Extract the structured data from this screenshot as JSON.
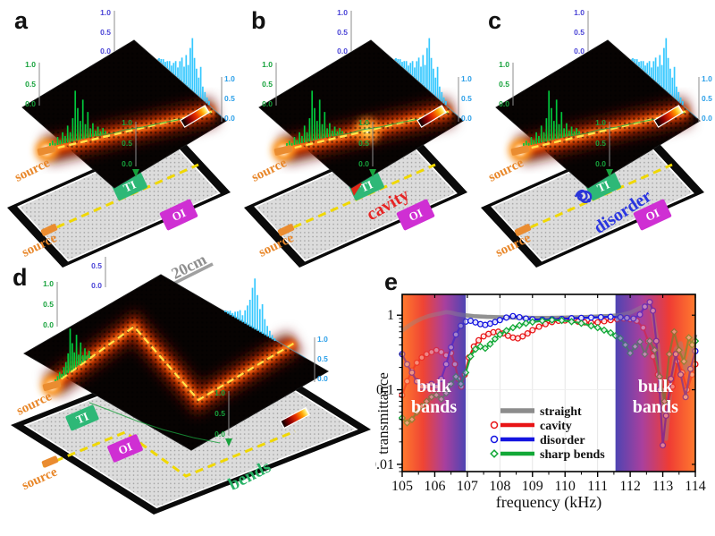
{
  "shared": {
    "axis_ticks": [
      "1.0",
      "0.5",
      "0.0"
    ],
    "d_top_ticks": [
      "0.5",
      "0.0"
    ],
    "spectrum_in": [
      4,
      6,
      3,
      9,
      5,
      13,
      8,
      19,
      11,
      26,
      56,
      36,
      21,
      44,
      16,
      29,
      10,
      15,
      6,
      10,
      4,
      7,
      3
    ],
    "spectrum_out": [
      3,
      4,
      6,
      5,
      8,
      10,
      7,
      12,
      16,
      11,
      20,
      26,
      18,
      33,
      24,
      45,
      58,
      38,
      28,
      20,
      34,
      14,
      10,
      6,
      4
    ],
    "spectrum_in_d": [
      3,
      5,
      8,
      4,
      10,
      14,
      22,
      48,
      30,
      18,
      36,
      12,
      24,
      8,
      14,
      5,
      8
    ],
    "spectrum_out_d": [
      2,
      3,
      5,
      4,
      7,
      9,
      12,
      8,
      15,
      22,
      30,
      45,
      57,
      40,
      26,
      33,
      18,
      12,
      8,
      5,
      3
    ],
    "colors": {
      "ti_box": "#2eb877",
      "oi_box": "#cf2fd3",
      "source": "#e8872a",
      "cavity": "#e62424",
      "disorder": "#2a35e0",
      "bends": "#28b266",
      "waveguide_dash": "#ffe34a"
    }
  },
  "panels": {
    "a": {
      "letter": "a",
      "ti": "TI",
      "oi": "OI",
      "source": "source"
    },
    "b": {
      "letter": "b",
      "ti": "TI",
      "oi": "OI",
      "source": "source",
      "feature": "cavity"
    },
    "c": {
      "letter": "c",
      "ti": "TI",
      "oi": "OI",
      "source": "source",
      "feature": "disorder"
    },
    "d": {
      "letter": "d",
      "ti": "TI",
      "oi": "OI",
      "source": "source",
      "feature": "bends",
      "scalebar": "20cm"
    },
    "e": {
      "letter": "e"
    }
  },
  "chart_data": {
    "type": "line",
    "title": "",
    "xlabel": "frequency (kHz)",
    "ylabel": "transmittance",
    "xlim": [
      105,
      114
    ],
    "ylim": [
      0.008,
      1.9
    ],
    "yscale": "log",
    "grid": true,
    "legend_position": "lower center",
    "xticks": [
      105,
      106,
      107,
      108,
      109,
      110,
      111,
      112,
      113,
      114
    ],
    "yticks": [
      {
        "v": 1,
        "t": "1"
      },
      {
        "v": 0.1,
        "t": "0.1"
      },
      {
        "v": 0.01,
        "t": "0.01"
      }
    ],
    "regions": [
      {
        "label": "bulk bands",
        "x_start": 105,
        "x_end": 106.95,
        "gradient": [
          "#ff7a2e",
          "#ef4434",
          "#a8409e",
          "#4e44b2"
        ]
      },
      {
        "label": "bulk bands",
        "x_start": 111.55,
        "x_end": 114,
        "gradient": [
          "#4e44b2",
          "#a8409e",
          "#ef3c34",
          "#ff7a2e"
        ]
      }
    ],
    "legend": [
      {
        "name": "straight",
        "color": "#8c8c8c",
        "marker": "none"
      },
      {
        "name": "cavity",
        "color": "#e81416",
        "marker": "circle"
      },
      {
        "name": "disorder",
        "color": "#1414e0",
        "marker": "circle"
      },
      {
        "name": "sharp bends",
        "color": "#12a837",
        "marker": "diamond"
      }
    ],
    "series": [
      {
        "name": "straight",
        "color": "#8c8c8c",
        "marker": "none",
        "width": 4.6,
        "points": [
          [
            105,
            0.62
          ],
          [
            105.2,
            0.72
          ],
          [
            105.4,
            0.82
          ],
          [
            105.6,
            0.9
          ],
          [
            105.8,
            0.97
          ],
          [
            106,
            1.02
          ],
          [
            106.2,
            1.06
          ],
          [
            106.35,
            1.1
          ],
          [
            106.5,
            1.08
          ],
          [
            106.7,
            1.03
          ],
          [
            106.9,
            1.0
          ],
          [
            107.2,
            0.97
          ],
          [
            107.6,
            0.95
          ],
          [
            108,
            0.94
          ],
          [
            108.5,
            0.93
          ],
          [
            109,
            0.92
          ],
          [
            109.5,
            0.92
          ],
          [
            110,
            0.93
          ],
          [
            110.5,
            0.94
          ],
          [
            111,
            0.96
          ],
          [
            111.4,
            0.98
          ],
          [
            111.7,
            1.0
          ],
          [
            112,
            1.08
          ],
          [
            112.3,
            1.25
          ],
          [
            112.55,
            1.42
          ],
          [
            112.7,
            1.05
          ],
          [
            112.85,
            0.4
          ],
          [
            113,
            0.05
          ],
          [
            113.1,
            0.022
          ],
          [
            113.25,
            0.12
          ],
          [
            113.4,
            0.35
          ],
          [
            113.55,
            0.42
          ],
          [
            113.7,
            0.18
          ],
          [
            113.85,
            0.3
          ],
          [
            114,
            0.55
          ]
        ]
      },
      {
        "name": "cavity",
        "color": "#e81416",
        "marker": "circle",
        "width": 2.2,
        "points": [
          [
            105,
            0.085
          ],
          [
            105.15,
            0.13
          ],
          [
            105.3,
            0.18
          ],
          [
            105.45,
            0.23
          ],
          [
            105.6,
            0.27
          ],
          [
            105.75,
            0.3
          ],
          [
            105.9,
            0.32
          ],
          [
            106.05,
            0.34
          ],
          [
            106.2,
            0.32
          ],
          [
            106.35,
            0.29
          ],
          [
            106.5,
            0.31
          ],
          [
            106.62,
            0.22
          ],
          [
            106.72,
            0.14
          ],
          [
            106.82,
            0.11
          ],
          [
            106.92,
            0.16
          ],
          [
            107.05,
            0.27
          ],
          [
            107.2,
            0.38
          ],
          [
            107.35,
            0.46
          ],
          [
            107.5,
            0.52
          ],
          [
            107.65,
            0.56
          ],
          [
            107.8,
            0.59
          ],
          [
            107.95,
            0.6
          ],
          [
            108.1,
            0.57
          ],
          [
            108.25,
            0.53
          ],
          [
            108.4,
            0.5
          ],
          [
            108.55,
            0.49
          ],
          [
            108.7,
            0.52
          ],
          [
            108.85,
            0.57
          ],
          [
            109,
            0.63
          ],
          [
            109.2,
            0.7
          ],
          [
            109.4,
            0.76
          ],
          [
            109.6,
            0.81
          ],
          [
            109.8,
            0.84
          ],
          [
            110,
            0.85
          ],
          [
            110.2,
            0.84
          ],
          [
            110.4,
            0.82
          ],
          [
            110.6,
            0.8
          ],
          [
            110.8,
            0.79
          ],
          [
            111,
            0.8
          ],
          [
            111.2,
            0.83
          ],
          [
            111.4,
            0.86
          ],
          [
            111.6,
            0.88
          ],
          [
            111.8,
            0.9
          ],
          [
            112,
            0.88
          ],
          [
            112.2,
            0.84
          ],
          [
            112.4,
            0.68
          ],
          [
            112.55,
            0.45
          ],
          [
            112.7,
            0.28
          ],
          [
            112.85,
            0.16
          ],
          [
            113,
            0.1
          ],
          [
            113.15,
            0.065
          ],
          [
            113.3,
            0.11
          ],
          [
            113.45,
            0.24
          ],
          [
            113.6,
            0.17
          ],
          [
            113.75,
            0.1
          ],
          [
            113.9,
            0.16
          ],
          [
            114,
            0.22
          ]
        ]
      },
      {
        "name": "disorder",
        "color": "#1414e0",
        "marker": "circle",
        "width": 2.2,
        "points": [
          [
            105,
            0.3
          ],
          [
            105.15,
            0.22
          ],
          [
            105.3,
            0.17
          ],
          [
            105.45,
            0.13
          ],
          [
            105.6,
            0.11
          ],
          [
            105.75,
            0.11
          ],
          [
            105.9,
            0.12
          ],
          [
            106.05,
            0.11
          ],
          [
            106.2,
            0.14
          ],
          [
            106.35,
            0.22
          ],
          [
            106.5,
            0.37
          ],
          [
            106.65,
            0.55
          ],
          [
            106.8,
            0.72
          ],
          [
            106.95,
            0.82
          ],
          [
            107.1,
            0.84
          ],
          [
            107.25,
            0.8
          ],
          [
            107.4,
            0.76
          ],
          [
            107.55,
            0.74
          ],
          [
            107.7,
            0.77
          ],
          [
            107.85,
            0.81
          ],
          [
            108,
            0.86
          ],
          [
            108.2,
            0.93
          ],
          [
            108.4,
            0.97
          ],
          [
            108.6,
            0.94
          ],
          [
            108.8,
            0.9
          ],
          [
            109,
            0.88
          ],
          [
            109.3,
            0.87
          ],
          [
            109.6,
            0.88
          ],
          [
            109.9,
            0.89
          ],
          [
            110.2,
            0.91
          ],
          [
            110.5,
            0.92
          ],
          [
            110.8,
            0.93
          ],
          [
            111.1,
            0.94
          ],
          [
            111.4,
            0.95
          ],
          [
            111.7,
            0.94
          ],
          [
            111.9,
            0.92
          ],
          [
            112.1,
            0.9
          ],
          [
            112.3,
            1.02
          ],
          [
            112.45,
            1.3
          ],
          [
            112.6,
            1.5
          ],
          [
            112.7,
            1.15
          ],
          [
            112.8,
            0.45
          ],
          [
            112.9,
            0.1
          ],
          [
            113,
            0.018
          ],
          [
            113.1,
            0.045
          ],
          [
            113.25,
            0.14
          ],
          [
            113.4,
            0.3
          ],
          [
            113.55,
            0.16
          ],
          [
            113.7,
            0.08
          ],
          [
            113.85,
            0.19
          ],
          [
            114,
            0.33
          ]
        ]
      },
      {
        "name": "sharp bends",
        "color": "#12a837",
        "marker": "diamond",
        "width": 2.2,
        "points": [
          [
            105,
            0.042
          ],
          [
            105.15,
            0.036
          ],
          [
            105.3,
            0.04
          ],
          [
            105.45,
            0.05
          ],
          [
            105.6,
            0.06
          ],
          [
            105.75,
            0.07
          ],
          [
            105.9,
            0.08
          ],
          [
            106.05,
            0.085
          ],
          [
            106.2,
            0.075
          ],
          [
            106.35,
            0.09
          ],
          [
            106.5,
            0.12
          ],
          [
            106.65,
            0.15
          ],
          [
            106.8,
            0.12
          ],
          [
            106.95,
            0.17
          ],
          [
            107.1,
            0.28
          ],
          [
            107.25,
            0.35
          ],
          [
            107.4,
            0.38
          ],
          [
            107.55,
            0.36
          ],
          [
            107.7,
            0.41
          ],
          [
            107.85,
            0.48
          ],
          [
            108,
            0.55
          ],
          [
            108.2,
            0.62
          ],
          [
            108.4,
            0.68
          ],
          [
            108.6,
            0.73
          ],
          [
            108.8,
            0.78
          ],
          [
            109,
            0.81
          ],
          [
            109.3,
            0.84
          ],
          [
            109.6,
            0.86
          ],
          [
            109.9,
            0.85
          ],
          [
            110.2,
            0.82
          ],
          [
            110.5,
            0.78
          ],
          [
            110.8,
            0.72
          ],
          [
            111,
            0.68
          ],
          [
            111.2,
            0.63
          ],
          [
            111.4,
            0.58
          ],
          [
            111.55,
            0.53
          ],
          [
            111.7,
            0.49
          ],
          [
            111.85,
            0.4
          ],
          [
            112,
            0.31
          ],
          [
            112.15,
            0.38
          ],
          [
            112.3,
            0.44
          ],
          [
            112.45,
            0.3
          ],
          [
            112.6,
            0.45
          ],
          [
            112.75,
            0.34
          ],
          [
            112.9,
            0.15
          ],
          [
            113.05,
            0.07
          ],
          [
            113.2,
            0.3
          ],
          [
            113.35,
            0.6
          ],
          [
            113.5,
            0.34
          ],
          [
            113.65,
            0.24
          ],
          [
            113.8,
            0.5
          ],
          [
            113.9,
            0.4
          ],
          [
            114,
            0.45
          ]
        ]
      }
    ]
  }
}
